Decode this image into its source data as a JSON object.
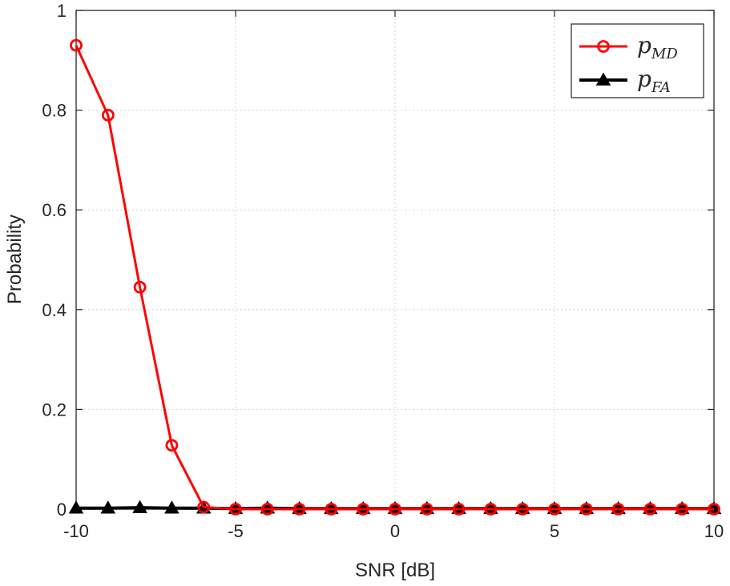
{
  "chart_data": {
    "type": "line",
    "title": "",
    "xlabel": "SNR [dB]",
    "ylabel": "Probability",
    "xlim": [
      -10,
      10
    ],
    "ylim": [
      0,
      1
    ],
    "x_ticks": [
      -10,
      -5,
      0,
      5,
      10
    ],
    "y_ticks": [
      0,
      0.2,
      0.4,
      0.6,
      0.8,
      1
    ],
    "x_tick_labels": [
      "-10",
      "-5",
      "0",
      "5",
      "10"
    ],
    "y_tick_labels": [
      "0",
      "0.2",
      "0.4",
      "0.6",
      "0.8",
      "1"
    ],
    "grid": true,
    "legend_position": "top-right",
    "x": [
      -10,
      -9,
      -8,
      -7,
      -6,
      -5,
      -4,
      -3,
      -2,
      -1,
      0,
      1,
      2,
      3,
      4,
      5,
      6,
      7,
      8,
      9,
      10
    ],
    "series": [
      {
        "name": "p_MD",
        "legend_main": "p",
        "legend_sub": "MD",
        "color": "#ff0000",
        "marker": "circle",
        "values": [
          0.93,
          0.79,
          0.445,
          0.128,
          0.004,
          0,
          0,
          0,
          0,
          0,
          0,
          0,
          0,
          0,
          0,
          0,
          0,
          0,
          0,
          0,
          0
        ]
      },
      {
        "name": "p_FA",
        "legend_main": "p",
        "legend_sub": "FA",
        "color": "#000000",
        "marker": "triangle",
        "values": [
          0.002,
          0.002,
          0.003,
          0.002,
          0.002,
          0.001,
          0.002,
          0.001,
          0.001,
          0.001,
          0.001,
          0.001,
          0.001,
          0.001,
          0.001,
          0.001,
          0.001,
          0.001,
          0.001,
          0.001,
          0.001
        ]
      }
    ]
  }
}
